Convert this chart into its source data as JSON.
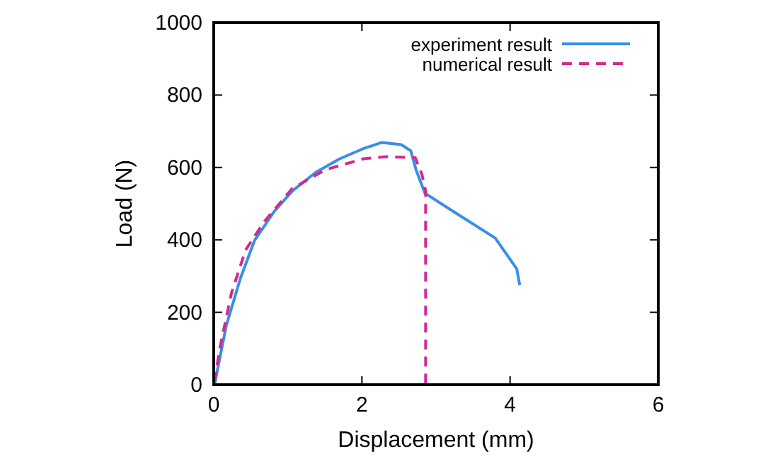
{
  "chart_data": {
    "type": "line",
    "xlabel": "Displacement (mm)",
    "ylabel": "Load (N)",
    "xlim": [
      0,
      6
    ],
    "ylim": [
      0,
      1000
    ],
    "xticks": [
      0,
      2,
      4,
      6
    ],
    "yticks": [
      0,
      200,
      400,
      600,
      800,
      1000
    ],
    "grid": false,
    "legend": "top right",
    "series": [
      {
        "name": "experiment result",
        "color": "#3a8ee6",
        "line_style": "solid",
        "x": [
          0.01,
          0.17,
          0.36,
          0.55,
          0.81,
          1.06,
          1.38,
          1.7,
          2.02,
          2.27,
          2.53,
          2.66,
          2.73,
          2.85,
          3.2,
          3.8,
          4.09,
          4.13
        ],
        "values": [
          0,
          164,
          294,
          398,
          477,
          535,
          587,
          624,
          652,
          669,
          663,
          646,
          594,
          529,
          483,
          405,
          320,
          275
        ]
      },
      {
        "name": "numerical result",
        "color": "#d6278f",
        "line_style": "dashed",
        "x": [
          0.01,
          0.08,
          0.24,
          0.43,
          0.68,
          1.06,
          1.51,
          2.02,
          2.34,
          2.72,
          2.81,
          2.86,
          2.86
        ],
        "values": [
          8,
          99,
          254,
          372,
          450,
          542,
          594,
          624,
          630,
          627,
          581,
          535,
          0
        ]
      }
    ]
  }
}
